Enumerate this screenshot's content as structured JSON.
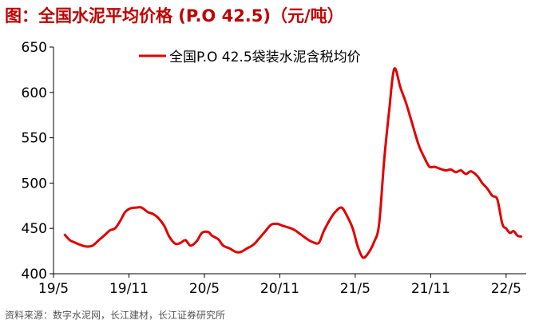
{
  "title": "图：全国水泥平均价格 (P.O 42.5)（元/吨）",
  "source": "资料来源：数字水泥网，长江建材，长江证券研究所",
  "chart_data": {
    "type": "line",
    "title": "图：全国水泥平均价格 (P.O 42.5)（元/吨）",
    "xlabel": "",
    "ylabel": "",
    "ylim": [
      400,
      650
    ],
    "yticks": [
      400,
      450,
      500,
      550,
      600,
      650
    ],
    "xlim": [
      0,
      37.6
    ],
    "xticks": [
      {
        "label": "19/5",
        "x": 0
      },
      {
        "label": "19/11",
        "x": 6
      },
      {
        "label": "20/5",
        "x": 12
      },
      {
        "label": "20/11",
        "x": 18
      },
      {
        "label": "21/5",
        "x": 24
      },
      {
        "label": "21/11",
        "x": 30
      },
      {
        "label": "22/5",
        "x": 36
      }
    ],
    "grid": false,
    "legend": "top-center",
    "series": [
      {
        "name": "全国P.O 42.5袋装水泥含税均价",
        "color": "#e00000",
        "x": [
          0.9,
          1.3,
          1.6,
          2.1,
          2.6,
          3.1,
          3.6,
          4.1,
          4.5,
          4.9,
          5.3,
          5.7,
          6.1,
          6.6,
          7.0,
          7.5,
          7.9,
          8.3,
          8.8,
          9.2,
          9.7,
          10.1,
          10.5,
          10.9,
          11.4,
          11.8,
          12.3,
          12.6,
          13.1,
          13.5,
          14.0,
          14.5,
          14.9,
          15.4,
          15.9,
          16.3,
          16.8,
          17.3,
          17.8,
          18.2,
          18.7,
          19.2,
          19.7,
          20.2,
          20.6,
          21.1,
          21.5,
          22.0,
          22.4,
          22.9,
          23.3,
          23.8,
          24.2,
          24.6,
          25.0,
          25.5,
          25.9,
          26.3,
          26.7,
          27.1,
          27.6,
          28.0,
          28.4,
          28.8,
          29.1,
          29.5,
          29.9,
          30.3,
          30.7,
          31.2,
          31.6,
          32.0,
          32.4,
          32.8,
          33.2,
          33.7,
          34.1,
          34.5,
          34.9,
          35.3,
          35.7,
          36.0,
          36.3,
          36.6,
          36.9,
          37.2
        ],
        "values": [
          443,
          437,
          435,
          432,
          430,
          431,
          437,
          443,
          448,
          450,
          458,
          468,
          472,
          473,
          473,
          468,
          466,
          462,
          453,
          441,
          433,
          434,
          437,
          431,
          436,
          445,
          446,
          442,
          438,
          431,
          428,
          424,
          424,
          428,
          432,
          438,
          446,
          454,
          455,
          453,
          451,
          448,
          443,
          438,
          435,
          434,
          447,
          460,
          468,
          473,
          465,
          450,
          430,
          418,
          422,
          435,
          455,
          525,
          580,
          626,
          605,
          590,
          572,
          553,
          540,
          528,
          518,
          518,
          516,
          514,
          515,
          512,
          514,
          510,
          513,
          508,
          500,
          494,
          486,
          482,
          455,
          450,
          445,
          447,
          442,
          441
        ]
      }
    ]
  }
}
